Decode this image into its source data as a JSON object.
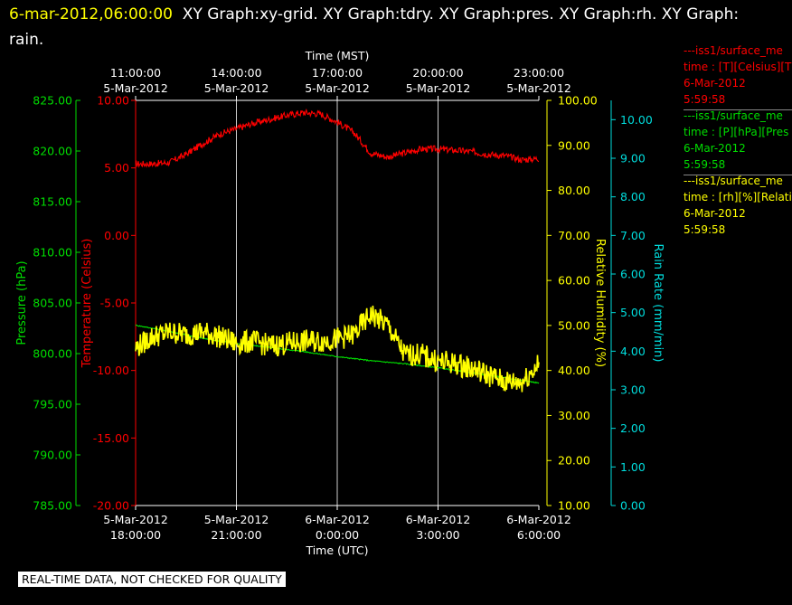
{
  "title": {
    "timestamp": "6-mar-2012,06:00:00",
    "text": "XY Graph:xy-grid.  XY Graph:tdry.  XY Graph:pres.  XY Graph:rh.  XY Graph: rain."
  },
  "legend": [
    {
      "name": "---iss1/surface_me",
      "line2": "time : [T][Celsius][T",
      "date": "6-Mar-2012",
      "time": "5:59:58",
      "color": "#ff0000"
    },
    {
      "name": "---iss1/surface_me",
      "line2": "time : [P][hPa][Pres",
      "date": "6-Mar-2012",
      "time": "5:59:58",
      "color": "#00dd00"
    },
    {
      "name": "---iss1/surface_me",
      "line2": "time : [rh][%][Relati",
      "date": "6-Mar-2012",
      "time": "5:59:58",
      "color": "#ffff00"
    }
  ],
  "banner": "REAL-TIME DATA, NOT CHECKED FOR QUALITY",
  "chart_data": {
    "type": "line",
    "x_top": {
      "label": "Time (MST)",
      "ticks": [
        {
          "time": "11:00:00",
          "date": "5-Mar-2012"
        },
        {
          "time": "14:00:00",
          "date": "5-Mar-2012"
        },
        {
          "time": "17:00:00",
          "date": "5-Mar-2012"
        },
        {
          "time": "20:00:00",
          "date": "5-Mar-2012"
        },
        {
          "time": "23:00:00",
          "date": "5-Mar-2012"
        }
      ]
    },
    "x_bottom": {
      "label": "Time (UTC)",
      "range": [
        "2012-03-05T18:00:00",
        "2012-03-06T06:00:00"
      ],
      "ticks": [
        {
          "date": "5-Mar-2012",
          "time": "18:00:00"
        },
        {
          "date": "5-Mar-2012",
          "time": "21:00:00"
        },
        {
          "date": "6-Mar-2012",
          "time": "0:00:00"
        },
        {
          "date": "6-Mar-2012",
          "time": "3:00:00"
        },
        {
          "date": "6-Mar-2012",
          "time": "6:00:00"
        }
      ]
    },
    "grid": true,
    "axes": {
      "pressure": {
        "label": "Pressure (hPa)",
        "range": [
          785,
          825
        ],
        "ticks": [
          "825.00",
          "820.00",
          "815.00",
          "810.00",
          "805.00",
          "800.00",
          "795.00",
          "790.00",
          "785.00"
        ],
        "color": "#00dd00"
      },
      "temperature": {
        "label": "Temperature (Celsius)",
        "range": [
          -20,
          10
        ],
        "ticks": [
          "10.00",
          "5.00",
          "0.00",
          "-5.00",
          "-10.00",
          "-15.00",
          "-20.00"
        ],
        "color": "#ff0000"
      },
      "rh": {
        "label": "Relative Humidity (%)",
        "range": [
          10,
          100
        ],
        "ticks": [
          "100.00",
          "90.00",
          "80.00",
          "70.00",
          "60.00",
          "50.00",
          "40.00",
          "30.00",
          "20.00",
          "10.00"
        ],
        "color": "#ffff00"
      },
      "rain": {
        "label": "Rain Rate (mm/min)",
        "range": [
          0,
          10.5
        ],
        "ticks": [
          "10.00",
          "9.00",
          "8.00",
          "7.00",
          "6.00",
          "5.00",
          "4.00",
          "3.00",
          "2.00",
          "1.00",
          "0.00"
        ],
        "color": "#00dddd"
      }
    },
    "series": [
      {
        "name": "iss1/surface_me [T][Celsius]",
        "axis": "temperature",
        "color": "#ff0000",
        "x_hours_utc": [
          0,
          0.5,
          1.0,
          1.5,
          2.0,
          2.5,
          3.0,
          3.5,
          4.0,
          4.5,
          5.0,
          5.5,
          6.0,
          6.5,
          7.0,
          7.5,
          8.0,
          8.5,
          9.0,
          9.5,
          10.0,
          10.5,
          11.0,
          11.5,
          12.0
        ],
        "values": [
          5.3,
          5.3,
          5.4,
          6.0,
          6.8,
          7.5,
          7.9,
          8.3,
          8.6,
          8.9,
          9.1,
          9.0,
          8.4,
          7.6,
          6.1,
          5.8,
          6.1,
          6.4,
          6.4,
          6.3,
          6.2,
          6.0,
          5.9,
          5.6,
          5.7
        ]
      },
      {
        "name": "iss1/surface_me [P][hPa]",
        "axis": "pressure",
        "color": "#00dd00",
        "x_hours_utc": [
          0,
          1.0,
          2.0,
          3.0,
          4.0,
          5.0,
          6.0,
          7.0,
          8.0,
          9.0,
          10.0,
          11.0,
          12.0
        ],
        "values": [
          802.8,
          802.2,
          801.5,
          801.0,
          800.6,
          800.2,
          799.7,
          799.3,
          799.0,
          798.6,
          798.1,
          797.6,
          797.1
        ]
      },
      {
        "name": "iss1/surface_me [rh][%]",
        "axis": "rh",
        "color": "#ffff00",
        "x_hours_utc": [
          0,
          0.5,
          1.0,
          1.5,
          2.0,
          2.5,
          3.0,
          3.5,
          4.0,
          4.5,
          5.0,
          5.5,
          6.0,
          6.5,
          7.0,
          7.5,
          8.0,
          8.5,
          9.0,
          9.5,
          10.0,
          10.5,
          11.0,
          11.5,
          12.0
        ],
        "values": [
          45.0,
          47.5,
          48.5,
          48.0,
          48.5,
          47.5,
          46.0,
          46.5,
          45.5,
          46.0,
          46.5,
          46.5,
          47.0,
          48.0,
          52.5,
          50.0,
          43.5,
          43.5,
          42.0,
          41.5,
          40.5,
          39.0,
          37.5,
          37.5,
          41.5
        ]
      }
    ]
  }
}
